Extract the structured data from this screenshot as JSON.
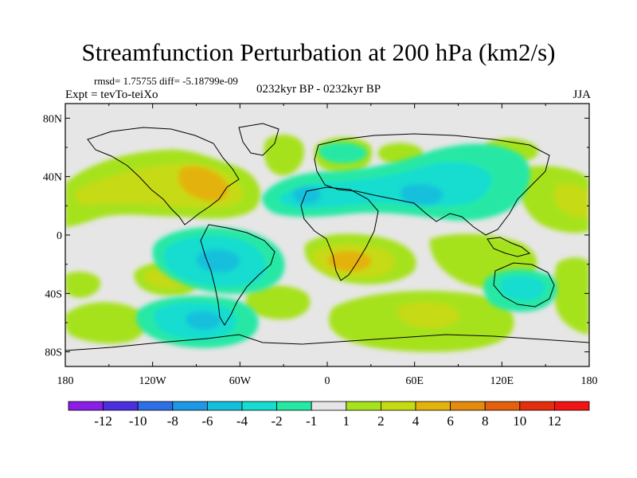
{
  "title": "Streamfunction Perturbation at 200 hPa (km2/s)",
  "stats": "rmsd= 1.75755 diff= -5.18799e-09",
  "left_label": "Expt = tevTo-teiXo",
  "center_label": "0232kyr BP - 0232kyr BP",
  "right_label": "JJA",
  "x_ticks": [
    "180",
    "120W",
    "60W",
    "0",
    "60E",
    "120E",
    "180"
  ],
  "y_ticks": [
    "80N",
    "40N",
    "0",
    "40S",
    "80S"
  ],
  "colorbar": {
    "labels": [
      "-12",
      "-10",
      "-8",
      "-6",
      "-4",
      "-2",
      "-1",
      "1",
      "2",
      "4",
      "6",
      "8",
      "10",
      "12"
    ],
    "colors": [
      "#8b1ee6",
      "#4b2ee0",
      "#2e6ee6",
      "#1d98e6",
      "#12c0dc",
      "#15ddd0",
      "#25e8a4",
      "#e6e6e6",
      "#a6e21e",
      "#c6da12",
      "#e4b20c",
      "#e48a0c",
      "#e4600c",
      "#e42e0c",
      "#f21414"
    ]
  },
  "map": {
    "lon_range": [
      -180,
      180
    ],
    "lat_range": [
      -90,
      90
    ],
    "background_color": "#e6e6e6"
  }
}
